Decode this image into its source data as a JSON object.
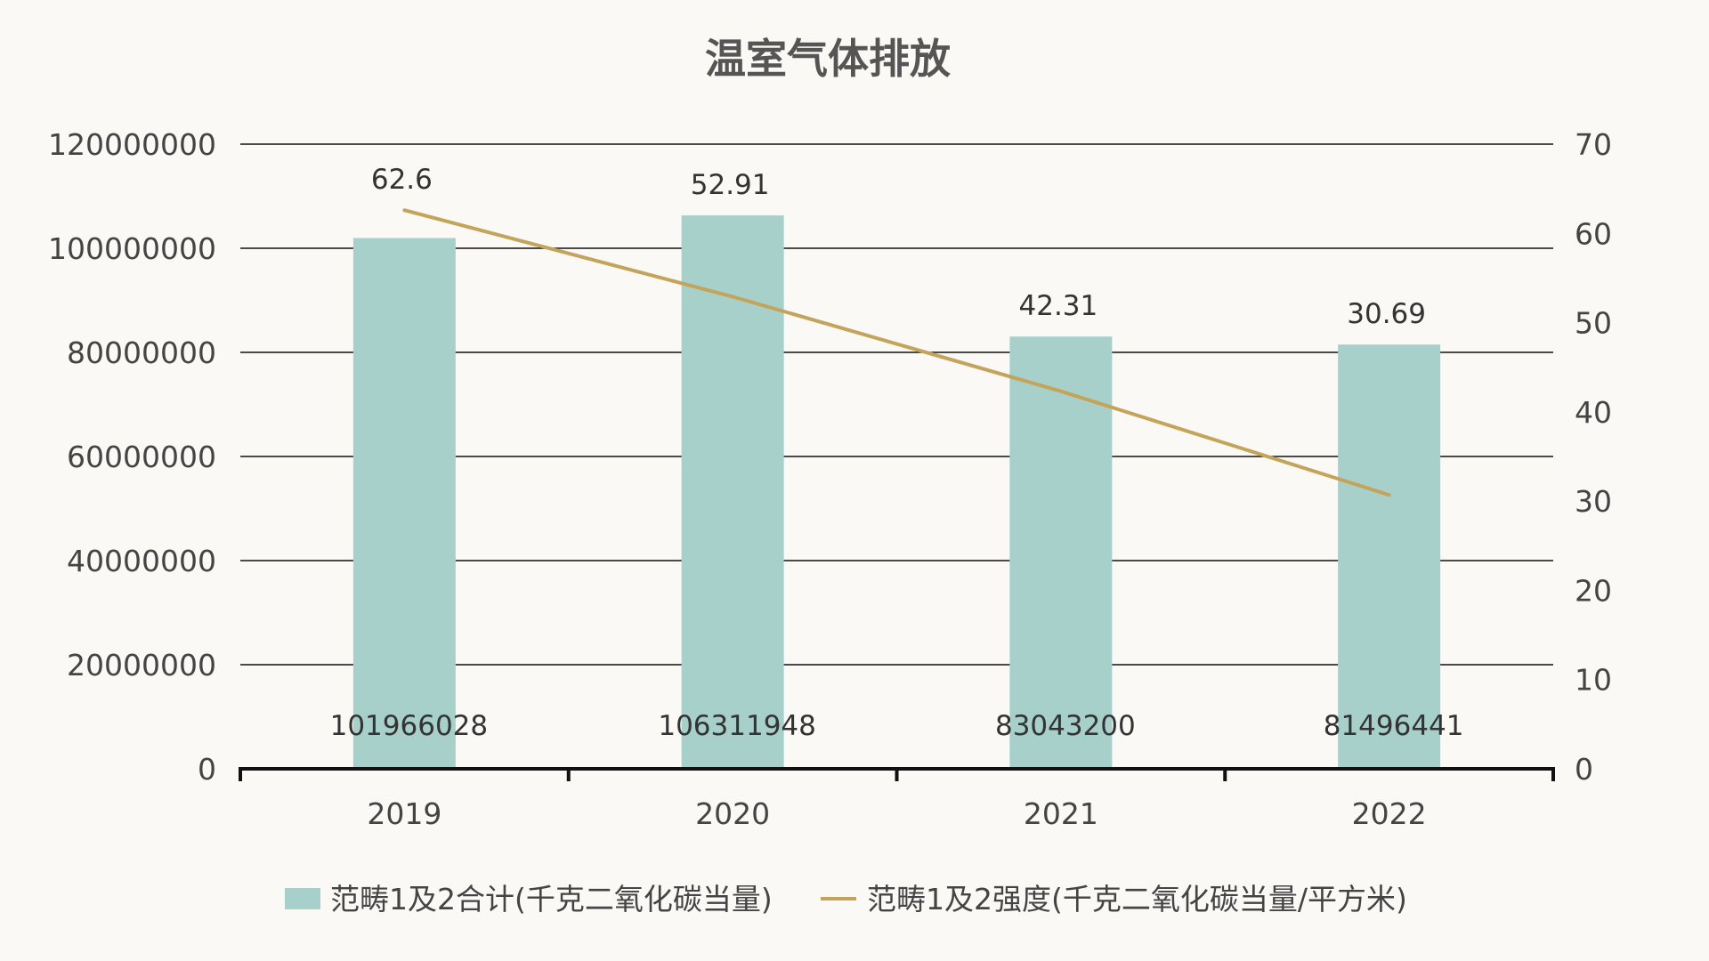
{
  "chart_data": {
    "type": "bar",
    "title": "温室气体排放",
    "categories": [
      "2019",
      "2020",
      "2021",
      "2022"
    ],
    "series": [
      {
        "name": "范畴1及2合计(千克二氧化碳当量)",
        "type": "bar",
        "axis": "left",
        "color": "#a8d0cb",
        "values": [
          101966028,
          106311948,
          83043200,
          81496441
        ]
      },
      {
        "name": "范畴1及2强度(千克二氧化碳当量/平方米)",
        "type": "line",
        "axis": "right",
        "color": "#c4a35a",
        "values": [
          62.6,
          52.91,
          42.31,
          30.69
        ]
      }
    ],
    "data_labels": {
      "bar": [
        "101966028",
        "106311948",
        "83043200",
        "81496441"
      ],
      "line": [
        "62.6",
        "52.91",
        "42.31",
        "30.69"
      ]
    },
    "y_left": {
      "min": 0,
      "max": 120000000,
      "ticks": [
        "0",
        "20000000",
        "40000000",
        "60000000",
        "80000000",
        "100000000",
        "120000000"
      ]
    },
    "y_right": {
      "min": 0,
      "max": 70,
      "ticks": [
        "0",
        "10",
        "20",
        "30",
        "40",
        "50",
        "60",
        "70"
      ]
    },
    "grid": true,
    "legend_position": "bottom"
  }
}
